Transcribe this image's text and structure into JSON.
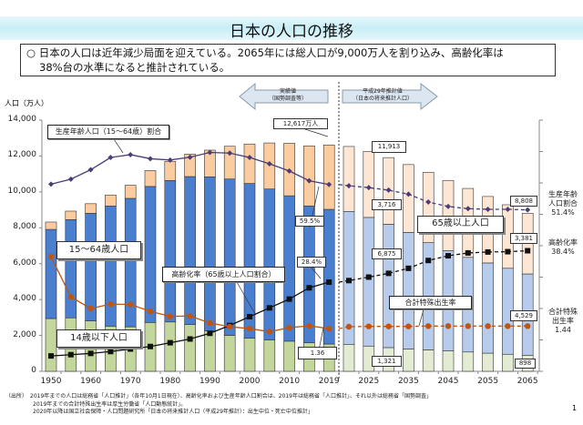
{
  "header": {
    "title": "日本の人口の推移"
  },
  "summary": {
    "bullet": "○",
    "line1": "日本の人口は近年減少局面を迎えている。2065年には総人口が9,000万人を割り込み、高齢化率は",
    "line2": "38%台の水準になると推計されている。"
  },
  "period_labels": {
    "actual": "実績値",
    "actual_sub": "（国勢調査等）",
    "projection": "平成29年推計値",
    "projection_sub": "（日本の将来推計人口）"
  },
  "chart_data": {
    "type": "bar",
    "stacked": true,
    "ylabel": "人口（万人）",
    "ylim": [
      0,
      14000
    ],
    "yticks": [
      "0",
      "2,000",
      "4,000",
      "6,000",
      "8,000",
      "10,000",
      "12,000",
      "14,000"
    ],
    "xtick_labels": [
      "1950",
      "1960",
      "1970",
      "1980",
      "1990",
      "2000",
      "2010",
      "2019",
      "2025",
      "2035",
      "2045",
      "2055",
      "2065"
    ],
    "categories": [
      "1950",
      "1955",
      "1960",
      "1965",
      "1970",
      "1975",
      "1980",
      "1985",
      "1990",
      "1995",
      "2000",
      "2005",
      "2010",
      "2015",
      "2019",
      "2020",
      "2025",
      "2030",
      "2035",
      "2040",
      "2045",
      "2050",
      "2055",
      "2060",
      "2065"
    ],
    "projection_start": "2020",
    "series": [
      {
        "name": "14歳以下人口",
        "color": "#c3d69b",
        "projection_color": "#e3ecd3",
        "values": [
          2943,
          2980,
          2807,
          2517,
          2482,
          2722,
          2751,
          2603,
          2249,
          2001,
          1847,
          1752,
          1680,
          1589,
          1521,
          1507,
          1407,
          1321,
          1246,
          1194,
          1138,
          1077,
          1012,
          951,
          898
        ]
      },
      {
        "name": "15～64歳人口",
        "color": "#4a7ecf",
        "projection_color": "#b7ccec",
        "values": [
          4966,
          5473,
          6000,
          6693,
          7157,
          7581,
          7883,
          8251,
          8590,
          8716,
          8622,
          8409,
          8103,
          7629,
          7507,
          7406,
          7170,
          6875,
          6494,
          5978,
          5584,
          5275,
          5028,
          4793,
          4529
        ]
      },
      {
        "name": "65歳以上人口",
        "color": "#fbcc9f",
        "projection_color": "#fde6d3",
        "values": [
          411,
          475,
          535,
          618,
          733,
          887,
          1065,
          1247,
          1489,
          1826,
          2201,
          2567,
          2925,
          3347,
          3589,
          3619,
          3677,
          3716,
          3782,
          3921,
          3919,
          3841,
          3704,
          3540,
          3381
        ]
      }
    ],
    "lines": [
      {
        "name": "生産年齢人口（15～64歳）割合",
        "unit": "%",
        "color": "#4b3c78",
        "marker": "diamond",
        "values": [
          59.6,
          61.2,
          64.2,
          68.1,
          69.0,
          67.7,
          67.3,
          68.2,
          69.7,
          69.5,
          68.1,
          66.1,
          63.8,
          60.7,
          59.5,
          59.1,
          58.5,
          57.7,
          56.4,
          53.9,
          52.5,
          51.8,
          51.6,
          51.6,
          51.4
        ]
      },
      {
        "name": "高齢化率（65歳以上人口割合）",
        "unit": "%",
        "color": "#111111",
        "marker": "square",
        "values": [
          4.9,
          5.3,
          5.7,
          6.3,
          7.1,
          7.9,
          9.1,
          10.3,
          12.1,
          14.6,
          17.4,
          20.2,
          23.0,
          26.6,
          28.4,
          28.9,
          30.0,
          31.2,
          32.8,
          35.3,
          36.8,
          37.7,
          38.0,
          38.1,
          38.4
        ]
      },
      {
        "name": "合計特殊出生率",
        "color": "#c0550f",
        "marker": "circle",
        "values": [
          3.65,
          2.37,
          2.0,
          2.14,
          2.13,
          1.91,
          1.75,
          1.76,
          1.54,
          1.42,
          1.36,
          1.26,
          1.39,
          1.45,
          1.36,
          1.42,
          1.43,
          1.43,
          1.43,
          1.44,
          1.44,
          1.44,
          1.44,
          1.44,
          1.44
        ]
      }
    ],
    "annotations": {
      "total_2019": "12,617万人",
      "working_ratio_2019": "59.5%",
      "aging_2019": "28.4%",
      "tfr_2019": "1.36",
      "total_2030": "11,913",
      "old_2030": "3,716",
      "working_2030": "6,875",
      "young_2030": "1,321",
      "total_2065": "8,808",
      "old_2065": "3,381",
      "working_2065": "4,529",
      "young_2065": "898",
      "label_working_ratio": "生産年齢人口（15～64歳）割合",
      "label_working": "15～64歳人口",
      "label_young": "14歳以下人口",
      "label_aging": "高齢化率（65歳以上人口割合）",
      "label_old": "65歳以上人口",
      "label_tfr": "合計特殊出生率",
      "right_working": "生産年齢\n人口割合\n51.4%",
      "right_aging": "高齢化率\n38.4%",
      "right_tfr": "合計特殊\n出生率\n1.44"
    }
  },
  "footnote": {
    "line1": "（出所）　2019年までの人口は総務省「人口推計」（各年10月1日現在）、高齢化率および生産年齢人口割合は、2019年は総務省「人口推計」、それ以外は総務省「国勢調査」",
    "line2": "2019年までの合計特殊出生率は厚生労働省「人口動態統計」。",
    "line3": "2020年以降は国立社会保障・人口問題研究所「日本の将来推計人口（平成29年推計）：出生中位・死亡中位推計」"
  },
  "page_number": "1"
}
